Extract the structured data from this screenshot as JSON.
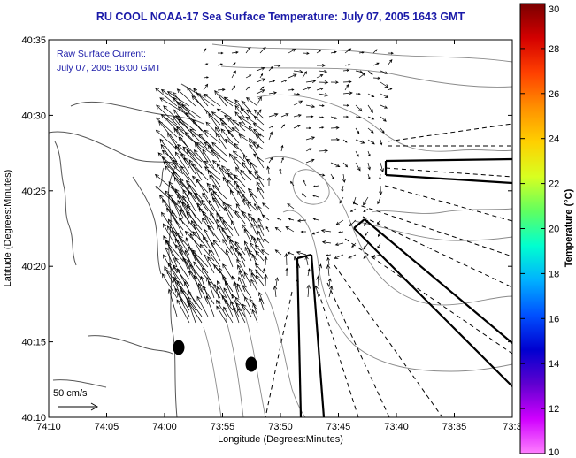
{
  "title": "RU COOL  NOAA-17  Sea Surface Temperature:  July 07, 2005 1643 GMT",
  "annotation": {
    "line1": "Raw Surface Current:",
    "line2": "July 07, 2005 16:00 GMT"
  },
  "scale": {
    "label": "50 cm/s"
  },
  "axes": {
    "xlabel": "Longitude (Degrees:Minutes)",
    "ylabel": "Latitude (Degrees:Minutes)",
    "xticks": [
      "74:10",
      "74:05",
      "74:00",
      "73:55",
      "73:50",
      "73:45",
      "73:40",
      "73:35",
      "73:3"
    ],
    "yticks": [
      "40:35",
      "40:30",
      "40:25",
      "40:20",
      "40:15",
      "40:10"
    ]
  },
  "colorbar": {
    "title": "Temperature (°C)",
    "ticks": [
      "30",
      "28",
      "26",
      "24",
      "22",
      "20",
      "18",
      "16",
      "14",
      "12",
      "10"
    ],
    "colors": [
      "#7a0000",
      "#d40000",
      "#ff4000",
      "#ff9000",
      "#ffd000",
      "#d8ff20",
      "#60ff60",
      "#00ffd0",
      "#00b0ff",
      "#0050ff",
      "#0000d0",
      "#6000d0",
      "#d000ff",
      "#ff80ff"
    ]
  },
  "colors": {
    "title": "#1a1aa8",
    "contour": "#888888",
    "coast": "#555555"
  }
}
